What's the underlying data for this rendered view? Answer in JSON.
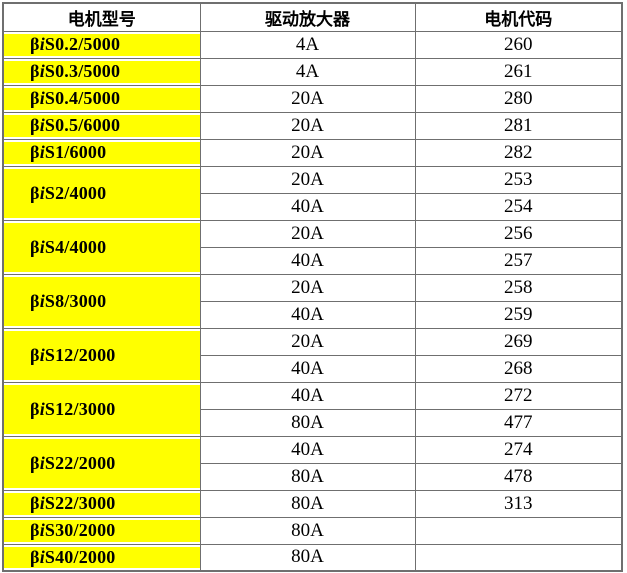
{
  "table": {
    "headers": [
      {
        "label": "电机型号"
      },
      {
        "label": "驱动放大器"
      },
      {
        "label": "电机代码"
      }
    ],
    "groups": [
      {
        "model": "βiS0.2/5000",
        "entries": [
          {
            "amp": "4A",
            "code": "260"
          }
        ]
      },
      {
        "model": "βiS0.3/5000",
        "entries": [
          {
            "amp": "4A",
            "code": "261"
          }
        ]
      },
      {
        "model": "βiS0.4/5000",
        "entries": [
          {
            "amp": "20A",
            "code": "280"
          }
        ]
      },
      {
        "model": "βiS0.5/6000",
        "entries": [
          {
            "amp": "20A",
            "code": "281"
          }
        ]
      },
      {
        "model": "βiS1/6000",
        "entries": [
          {
            "amp": "20A",
            "code": "282"
          }
        ]
      },
      {
        "model": "βiS2/4000",
        "entries": [
          {
            "amp": "20A",
            "code": "253"
          },
          {
            "amp": "40A",
            "code": "254"
          }
        ]
      },
      {
        "model": "βiS4/4000",
        "entries": [
          {
            "amp": "20A",
            "code": "256"
          },
          {
            "amp": "40A",
            "code": "257"
          }
        ]
      },
      {
        "model": "βiS8/3000",
        "entries": [
          {
            "amp": "20A",
            "code": "258"
          },
          {
            "amp": "40A",
            "code": "259"
          }
        ]
      },
      {
        "model": "βiS12/2000",
        "entries": [
          {
            "amp": "20A",
            "code": "269"
          },
          {
            "amp": "40A",
            "code": "268"
          }
        ]
      },
      {
        "model": "βiS12/3000",
        "entries": [
          {
            "amp": "40A",
            "code": "272"
          },
          {
            "amp": "80A",
            "code": "477"
          }
        ]
      },
      {
        "model": "βiS22/2000",
        "entries": [
          {
            "amp": "40A",
            "code": "274"
          },
          {
            "amp": "80A",
            "code": "478"
          }
        ]
      },
      {
        "model": "βiS22/3000",
        "entries": [
          {
            "amp": "80A",
            "code": "313"
          }
        ]
      },
      {
        "model": "βiS30/2000",
        "entries": [
          {
            "amp": "80A",
            "code": ""
          }
        ]
      },
      {
        "model": "βiS40/2000",
        "entries": [
          {
            "amp": "80A",
            "code": ""
          }
        ]
      }
    ],
    "colors": {
      "highlight": "#ffff00",
      "border": "#6f6f6f",
      "text": "#000000",
      "background": "#ffffff"
    }
  }
}
